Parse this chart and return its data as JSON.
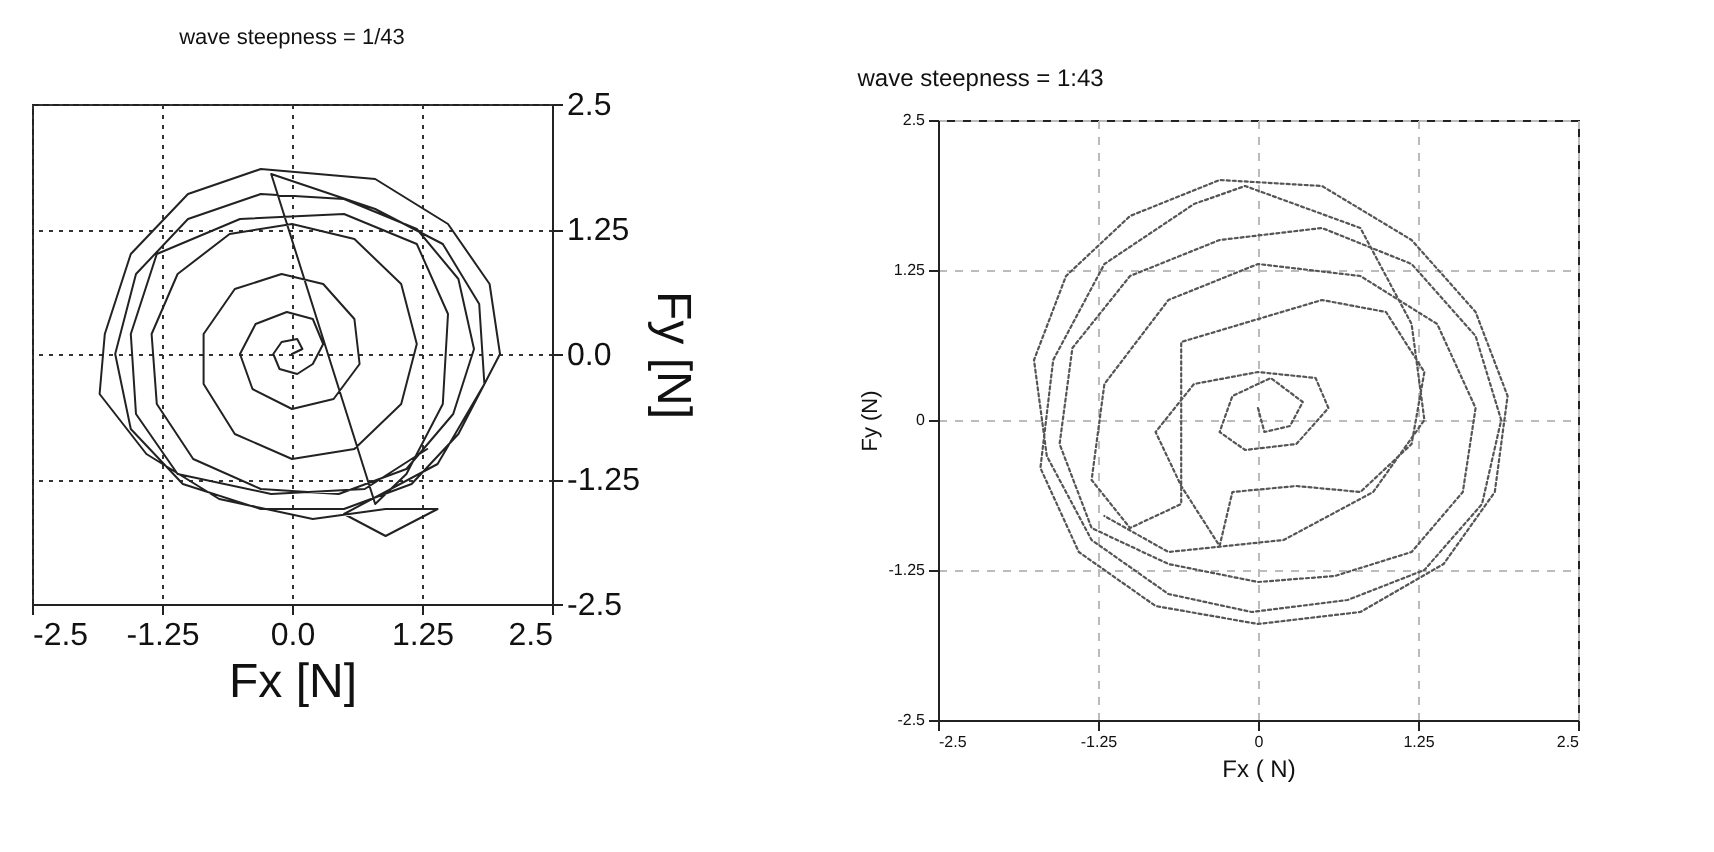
{
  "chart_data": [
    {
      "type": "line",
      "title": "wave steepness = 1/43",
      "xlabel": "Fx [N]",
      "ylabel": "Fy [N]",
      "xlim": [
        -2.5,
        2.5
      ],
      "ylim": [
        -2.5,
        2.5
      ],
      "xticks": [
        -2.5,
        -1.25,
        {
          "value": 0,
          "label": "0.0"
        },
        1.25,
        2.5
      ],
      "yticks": [
        -2.5,
        -1.25,
        {
          "value": 0,
          "label": "0.0"
        },
        1.25,
        2.5
      ],
      "grid": true,
      "line_style": "solid",
      "series": [
        {
          "color": "#222222",
          "x": [
            0,
            0.1,
            0.05,
            -0.1,
            -0.18,
            -0.12,
            0.05,
            0.2,
            0.3,
            0.2,
            -0.05,
            -0.35,
            -0.5,
            -0.38,
            0,
            0.4,
            0.65,
            0.6,
            0.3,
            -0.1,
            -0.55,
            -0.85,
            -0.85,
            -0.55,
            0,
            0.6,
            1.05,
            1.2,
            1.05,
            0.6,
            0,
            -0.6,
            -1.1,
            -1.35,
            -1.3,
            -0.95,
            -0.3,
            0.45,
            1.1,
            1.55,
            1.75,
            1.6,
            1.2,
            0.5,
            -0.3,
            -1.0,
            -1.5,
            -1.7,
            -1.55,
            -1.05,
            -0.3,
            0.5,
            1.15,
            1.6,
            2.0,
            1.9,
            1.5,
            0.8,
            -0.3,
            -1.0,
            -1.55,
            -1.8,
            -1.85,
            -1.4,
            -0.7,
            0.2,
            0.9,
            1.4,
            0.9,
            0.5,
            1.4,
            1.85,
            1.8,
            1.45,
            0.8,
            -0.2,
            0.8,
            1.1,
            1.45,
            1.5,
            1.2,
            0.5,
            -0.5,
            -1.3,
            -1.55,
            -1.5,
            -1.1,
            -0.2,
            0.7,
            1.3
          ],
          "values": [
            0,
            0.05,
            0.15,
            0.12,
            0,
            -0.15,
            -0.2,
            -0.1,
            0.1,
            0.35,
            0.42,
            0.3,
            0,
            -0.35,
            -0.55,
            -0.45,
            -0.1,
            0.35,
            0.7,
            0.8,
            0.65,
            0.2,
            -0.3,
            -0.8,
            -1.05,
            -0.95,
            -0.5,
            0.1,
            0.7,
            1.15,
            1.3,
            1.2,
            0.8,
            0.2,
            -0.5,
            -1.05,
            -1.35,
            -1.4,
            -1.15,
            -0.6,
            0.05,
            0.75,
            1.25,
            1.55,
            1.6,
            1.35,
            0.8,
            0,
            -0.75,
            -1.3,
            -1.55,
            -1.55,
            -1.3,
            -0.8,
            0,
            0.7,
            1.3,
            1.75,
            1.85,
            1.6,
            1.0,
            0.2,
            -0.4,
            -1.0,
            -1.45,
            -1.65,
            -1.55,
            -1.55,
            -1.82,
            -1.6,
            -1.1,
            -0.3,
            0.5,
            1.1,
            1.45,
            1.8,
            -1.5,
            -1.2,
            -0.5,
            0.4,
            1.1,
            1.4,
            1.35,
            1.0,
            0.2,
            -0.6,
            -1.2,
            -1.4,
            -1.35,
            -0.95
          ]
        }
      ]
    },
    {
      "type": "line",
      "title": "wave steepness = 1:43",
      "xlabel": "Fx ( N)",
      "ylabel": "Fy (N)",
      "xlim": [
        -2.5,
        2.5
      ],
      "ylim": [
        -2.5,
        2.5
      ],
      "xticks": [
        -2.5,
        -1.25,
        0,
        1.25,
        2.5
      ],
      "yticks": [
        -2.5,
        -1.25,
        0,
        1.25,
        2.5
      ],
      "grid": true,
      "line_style": "dotted",
      "series": [
        {
          "color": "#555555",
          "x": [
            0,
            0.05,
            0.25,
            0.35,
            0.1,
            -0.2,
            -0.3,
            -0.1,
            0.3,
            0.55,
            0.45,
            0,
            -0.5,
            -0.8,
            -0.6,
            -0.3,
            -0.2,
            0.3,
            0.8,
            1.2,
            1.3,
            1.0,
            0.5,
            -0.6,
            -0.6,
            -1.0,
            -1.3,
            -1.2,
            -0.7,
            0,
            0.8,
            1.4,
            1.7,
            1.6,
            1.2,
            0.6,
            0,
            -0.7,
            -1.3,
            -1.55,
            -1.45,
            -1.0,
            -0.3,
            0.5,
            1.2,
            1.7,
            1.9,
            1.75,
            1.3,
            0.7,
            -0.05,
            -0.7,
            -1.3,
            -1.65,
            -1.75,
            -1.5,
            -1.0,
            -0.3,
            0.5,
            1.2,
            1.7,
            1.95,
            1.85,
            1.45,
            0.8,
            0,
            -0.8,
            -1.4,
            -1.7,
            -1.6,
            -1.2,
            -0.5,
            -0.1,
            0.8,
            1.2,
            1.3,
            0.9,
            0.2,
            -0.7,
            -1.2
          ],
          "values": [
            0.1,
            -0.1,
            -0.05,
            0.15,
            0.35,
            0.2,
            -0.1,
            -0.25,
            -0.2,
            0.1,
            0.35,
            0.4,
            0.3,
            -0.1,
            -0.55,
            -1.05,
            -0.6,
            -0.55,
            -0.6,
            -0.2,
            0.4,
            0.9,
            1.0,
            0.65,
            -0.7,
            -0.9,
            -0.5,
            0.3,
            1.0,
            1.3,
            1.2,
            0.8,
            0.1,
            -0.6,
            -1.1,
            -1.3,
            -1.35,
            -1.2,
            -0.9,
            -0.2,
            0.6,
            1.2,
            1.5,
            1.6,
            1.3,
            0.7,
            0,
            -0.7,
            -1.25,
            -1.5,
            -1.6,
            -1.45,
            -1.0,
            -0.3,
            0.5,
            1.2,
            1.7,
            2.0,
            1.95,
            1.5,
            0.9,
            0.2,
            -0.6,
            -1.2,
            -1.6,
            -1.7,
            -1.55,
            -1.1,
            -0.4,
            0.5,
            1.3,
            1.8,
            1.95,
            1.6,
            0.8,
            0,
            -0.6,
            -1.0,
            -1.1,
            -0.8
          ]
        }
      ]
    }
  ]
}
